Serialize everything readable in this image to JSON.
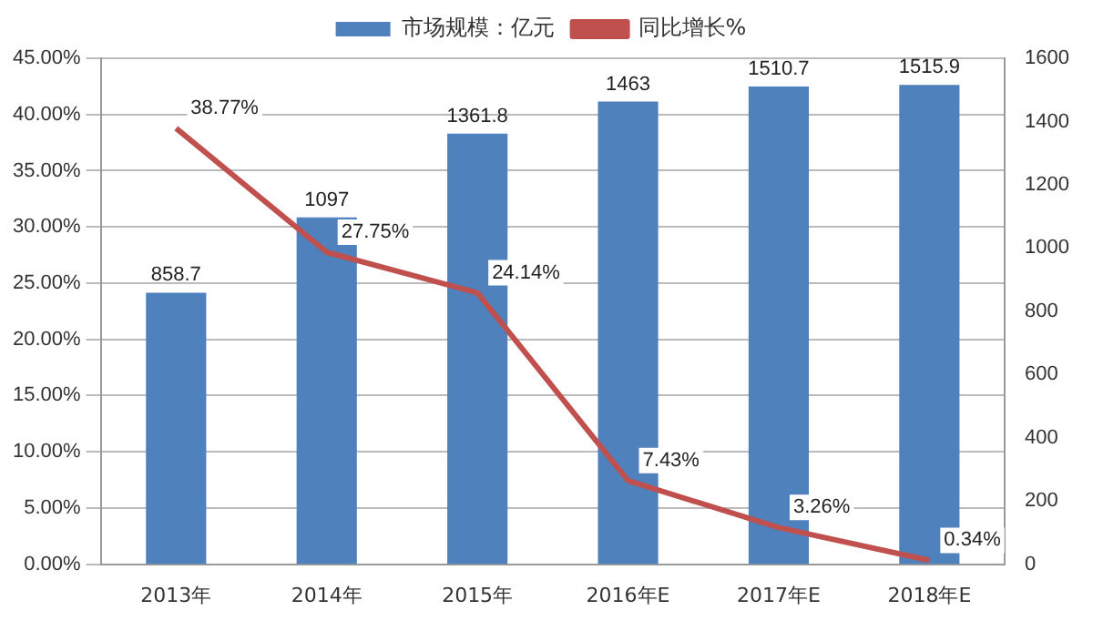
{
  "chart_data": {
    "type": "bar",
    "categories": [
      "2013年",
      "2014年",
      "2015年",
      "2016年E",
      "2017年E",
      "2018年E"
    ],
    "series": [
      {
        "name": "市场规模：亿元",
        "axis": "y2",
        "color": "#4f81bd",
        "values": [
          858.7,
          1097,
          1361.8,
          1463,
          1510.7,
          1515.9
        ],
        "value_labels": [
          "858.7",
          "1097",
          "1361.8",
          "1463",
          "1510.7",
          "1515.9"
        ]
      },
      {
        "name": "同比增长%",
        "type": "line",
        "axis": "y",
        "color": "#c0504d",
        "values": [
          38.77,
          27.75,
          24.14,
          7.43,
          3.26,
          0.34
        ],
        "value_labels": [
          "38.77%",
          "27.75%",
          "24.14%",
          "7.43%",
          "3.26%",
          "0.34%"
        ]
      }
    ],
    "ylim": [
      0,
      45
    ],
    "yticks": [
      {
        "value": 0,
        "label": "0.00%"
      },
      {
        "value": 5,
        "label": "5.00%"
      },
      {
        "value": 10,
        "label": "10.00%"
      },
      {
        "value": 15,
        "label": "15.00%"
      },
      {
        "value": 20,
        "label": "20.00%"
      },
      {
        "value": 25,
        "label": "25.00%"
      },
      {
        "value": 30,
        "label": "30.00%"
      },
      {
        "value": 35,
        "label": "35.00%"
      },
      {
        "value": 40,
        "label": "40.00%"
      },
      {
        "value": 45,
        "label": "45.00%"
      }
    ],
    "y2lim": [
      0,
      1600
    ],
    "y2ticks": [
      0,
      200,
      400,
      600,
      800,
      1000,
      1200,
      1400,
      1600
    ],
    "grid": "y",
    "legend": "top",
    "marker": "none",
    "line_style": "solid"
  }
}
